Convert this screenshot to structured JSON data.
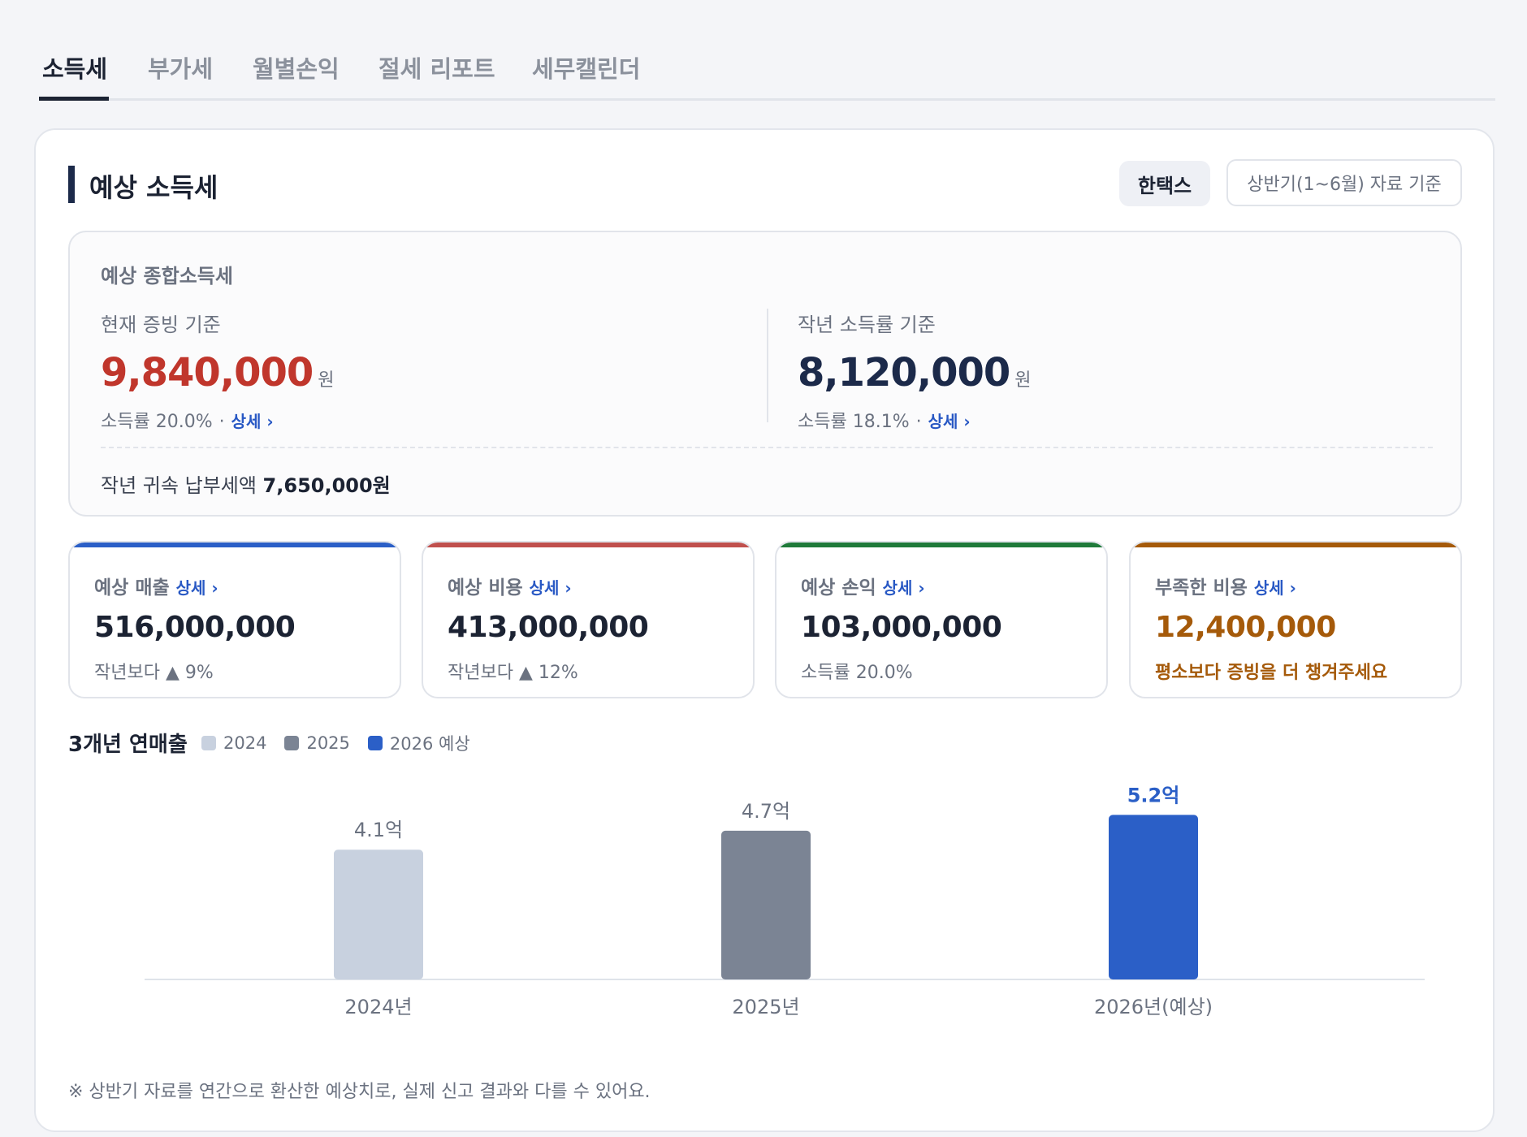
{
  "tabs": [
    {
      "label": "소득세",
      "active": true
    },
    {
      "label": "부가세",
      "active": false
    },
    {
      "label": "월별손익",
      "active": false
    },
    {
      "label": "절세 리포트",
      "active": false
    },
    {
      "label": "세무캘린더",
      "active": false
    }
  ],
  "card": {
    "title": "예상 소득세",
    "provider": "한택스",
    "basis": "상반기(1~6월) 자료 기준"
  },
  "summary": {
    "title": "예상 종합소득세",
    "current": {
      "label": "현재 증빙 기준",
      "amount": "9,840,000",
      "unit": "원",
      "rate": "소득률 20.0%",
      "dot": "·",
      "detail": "상세 ›"
    },
    "lastyear": {
      "label": "작년 소득률 기준",
      "amount": "8,120,000",
      "unit": "원",
      "rate": "소득률 18.1%",
      "dot": "·",
      "detail": "상세 ›"
    },
    "last_tax_label": "작년 귀속 납부세액",
    "last_tax_value": "7,650,000원"
  },
  "metrics": [
    {
      "label": "예상 매출",
      "detail": "상세 ›",
      "value": "516,000,000",
      "sub": "작년보다 ▲ 9%",
      "color": "#2b5fc7"
    },
    {
      "label": "예상 비용",
      "detail": "상세 ›",
      "value": "413,000,000",
      "sub": "작년보다 ▲ 12%",
      "color": "#c0504d"
    },
    {
      "label": "예상 손익",
      "detail": "상세 ›",
      "value": "103,000,000",
      "sub": "소득률 20.0%",
      "color": "#1f7a3a"
    },
    {
      "label": "부족한 비용",
      "detail": "상세 ›",
      "value": "12,400,000",
      "sub": "평소보다 증빙을 더 챙겨주세요",
      "color": "#a55a0a"
    }
  ],
  "chart_title": "3개년 연매출",
  "chart_data": {
    "type": "bar",
    "categories": [
      "2024년",
      "2025년",
      "2026년(예상)"
    ],
    "values": [
      4.1,
      4.7,
      5.2
    ],
    "value_labels": [
      "4.1억",
      "4.7억",
      "5.2억"
    ],
    "unit": "억",
    "colors": [
      "#c8d1df",
      "#7b8494",
      "#2b5fc7"
    ],
    "legend": [
      {
        "name": "2024",
        "color": "#c8d1df"
      },
      {
        "name": "2025",
        "color": "#7b8494"
      },
      {
        "name": "2026 예상",
        "color": "#2b5fc7"
      }
    ],
    "highlight_index": 2,
    "ylim": [
      0,
      5.8
    ],
    "legend_position": "top-left",
    "grid": false
  },
  "footnote": "※ 상반기 자료를 연간으로 환산한 예상치로, 실제 신고 결과와 다를 수 있어요."
}
